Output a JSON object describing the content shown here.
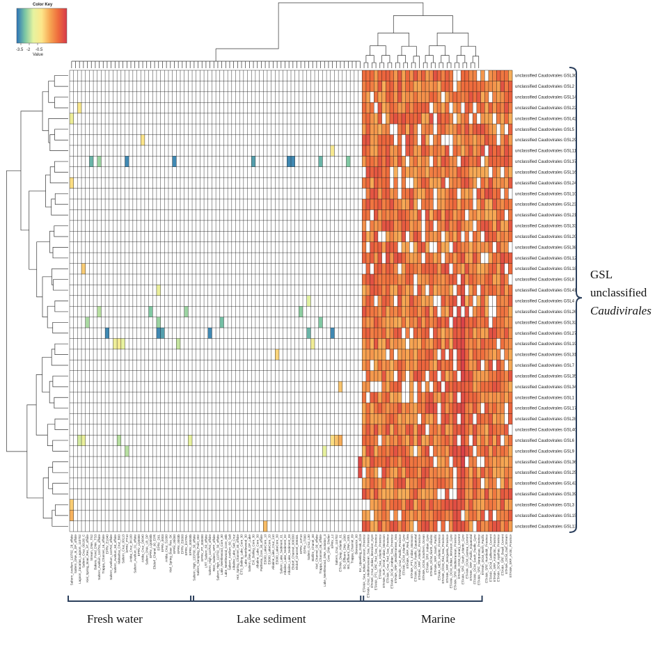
{
  "chart_data": {
    "type": "heatmap",
    "color_key": {
      "title": "Color Key",
      "xlabel": "Value",
      "tick_labels": [
        "-3.5",
        "-2",
        "-0.5"
      ],
      "range": [
        -4.2,
        0.4
      ],
      "colors": [
        "#2b73b8",
        "#7cc7a3",
        "#e6f3a0",
        "#fde68a",
        "#f6a552",
        "#ee6a3c",
        "#d63a4a"
      ]
    },
    "rows": [
      "unclassified Caudovirales GSL30",
      "unclassified Caudovirales GSL2",
      "unclassified Caudovirales GSL14",
      "unclassified Caudovirales GSL22",
      "unclassified Caudovirales GSL42",
      "unclassified Caudovirales GSL5",
      "unclassified Caudovirales GSL29",
      "unclassified Caudovirales GSL11",
      "unclassified Caudovirales GSL37",
      "unclassified Caudovirales GSL16",
      "unclassified Caudovirales GSL24",
      "unclassified Caudovirales GSL10",
      "unclassified Caudovirales GSL23",
      "unclassified Caudovirales GSL21",
      "unclassified Caudovirales GSL33",
      "unclassified Caudovirales GSL20",
      "unclassified Caudovirales GSL38",
      "unclassified Caudovirales GSL12",
      "unclassified Caudovirales GSL18",
      "unclassified Caudovirales GSL8",
      "unclassified Caudovirales GSL41",
      "unclassified Caudovirales GSL4",
      "unclassified Caudovirales GSL26",
      "unclassified Caudovirales GSL32",
      "unclassified Caudovirales GSL27",
      "unclassified Caudovirales GSL19",
      "unclassified Caudovirales GSL31",
      "unclassified Caudovirales GSL7",
      "unclassified Caudovirales GSL35",
      "unclassified Caudovirales GSL34",
      "unclassified Caudovirales GSL1",
      "unclassified Caudovirales GSL17",
      "unclassified Caudovirales GSL28",
      "unclassified Caudovirales GSL40",
      "unclassified Caudovirales GSL6",
      "unclassified Caudovirales GSL9",
      "unclassified Caudovirales GSL36",
      "unclassified Caudovirales GSL25",
      "unclassified Caudovirales GSL43",
      "unclassified Caudovirales GSL39",
      "unclassified Caudovirales GSL3",
      "unclassified Caudovirales GSL15",
      "unclassified Caudovirales GSL13"
    ],
    "columns": [
      "Saltern_Avellum_110702_28_offsite",
      "Saltern_DNA_B_DP_offsite",
      "Lagoon_Zacarias_Lagoon_110702",
      "Saltern_Cruz_00100_C",
      "Kiel_Spring_Boar_Res_97_offsite",
      "Stream_DNA_TS2",
      "Bakers_Pond_DNA_TS3",
      "Saltern_Avellum_110731_offsite",
      "Trappa_Channel_16_offsite",
      "EPRV_E1040",
      "Saltern_Avellum_110702_offsite",
      "Saltern_Avellum_60_offsite",
      "Makaelsa_Cruz_B00",
      "Saltern_Cruz_00113",
      "EPRV_PT10",
      "Aridia_Cruz_3K100",
      "Saltern_Avellum_01_offsite",
      "EPRV_LQ0000",
      "Aridia_Cruz_D0040",
      "Saltern_DNA_LB_DP",
      "EPRV_LQ0000b",
      "Eltdorf_Chanel_00_EPR",
      "EPRV_D01",
      "EPRV_0003",
      "Aridia_Cruz_S1000",
      "Kiel_Spring_Boar_Res_5K",
      "EPRV_00000",
      "EPRV_0003b",
      "EPRV_E0000",
      "EPRV_EXTRA",
      "EPRV_00000b",
      "Saltern_High_133700_30_offsite",
      "Saltern_Sampling_Point_002",
      "EPRV_PT_000000",
      "LRT_Saltern_60_offsite",
      "Saltern_High_110702_offsite",
      "RED_Saltern_HPF_offsite",
      "Saltern_High_110702_30_offsite",
      "Lake_Neettlewood_Core_30",
      "Lake_Neettlewood_Core_30b",
      "Saltern_Avellum_60_Salt",
      "Alkaline_Lake_Salt_Cruz",
      "Hot_Spring_Channel_30_offsite",
      "ETS_Boiling_Lake_Core_30",
      "Lake_Neettlewood_30",
      "Saltern_DNA_B_DP_Lake",
      "EXI_Boiling_Core_30",
      "Alkaline_Lake_Core_30",
      "Paltheria_Core_30_offsite",
      "E3000_LakeCore_10",
      "E3000_LakeCore_20",
      "Alkaline_Lake_Cruz_110",
      "E3000_LakeCore_30",
      "Saltern_Lake_Sediment_01",
      "Alkaline_Lake_Sediment_02",
      "Alkaline_Lake_Sediment_03",
      "Eltdorf_Channel_000330",
      "Eltdorf_Channel_000331",
      "EPRV_11P10",
      "EPRV_LT000",
      "Saltern_Cruz_L30",
      "Biofilm_Chanel_30",
      "Kiel_Channel_00_offsite",
      "Trappa_Channel_06_offsite",
      "Lake_Neettlewood_DNA_Isolation_3",
      "Core_DNA_Shelter",
      "EPRV_L2",
      "Saltern_Cruz_110702",
      "ETANA_Deep_Atlantic_01",
      "BG_Effluent_DNA_1000",
      "BG_Effluent_DNA_1001",
      "Trappa_Channel_09",
      "Bioreactor_00",
      "EA_Upwelling_Grab_2019",
      "ETAMA_Sea_Indian_Monsoon_Province",
      "ETAMA_Cruz_Mediterranean_Sea_Province",
      "ETAMA_Cruz_Indian_Monsoon_Gyre",
      "ETAMA_PT1_SRF_Red_Sea_Province",
      "ETAMA_Sea_Atlantic_Province",
      "ETAMA_SUF_DCM_Indian_Monsoon",
      "ETAMA_Cruz_Red_Sea_Province",
      "ETAMA_DCM_Arabian_Sea_Province",
      "ETAMA_SRF_Mediterranean_Sea",
      "ETAMA_Cruz_Pacific_Province",
      "ETAMA_DCM_Atlantic_Gyre",
      "ETAMA_SRF_Red_Sea",
      "ETAMA_PT1_Indian_Monsoon",
      "ETAMA_DCM_Pacific_Equatorial",
      "ETAMA_SRF_Atlantic_Province",
      "ETAMA_DCM_Southern_Ocean",
      "ETAMA_SRF_Indian_Gyre",
      "ETAMA_DCM_North_Atlantic",
      "ETAMA_SRF_South_Pacific",
      "ETAMA_MES_Atlantic_Province",
      "ETAMA_DCM_Red_Sea_Province",
      "ETAMA_SRF_Benguela_Province",
      "ETAMA_DCM_Indian_Monsoon_Gyre",
      "ETAMA_SRF_Mediterranean_Province",
      "ETAMA_DCM_Canary_Current",
      "ETAMA_SRF_South_Atlantic_Gyre",
      "ETAMA_DCM_Guinea_Current",
      "ETAMA_SRF_Pacific_Equatorial",
      "ETAMA_DCM_South_Pacific_Gyre",
      "ETAMA_SRF_Marquesas_Province",
      "ETAMA_DCM_North_Pacific",
      "ETAMA_SRF_Humboldt_Province",
      "ETAMA_DCM_California_Current",
      "ETAMA_SRF_Antarctic_Province",
      "ETAMA_DCM_Agulhas_Province",
      "ETAMA_SRF_Brazil_Current",
      "ETAMA_DCM_Gulf_Stream",
      "ETAMA_SRF_Arctic_Province"
    ],
    "groups": [
      {
        "name": "Fresh water",
        "from": 0,
        "to": 30
      },
      {
        "name": "Lake sediment",
        "from": 31,
        "to": 73
      },
      {
        "name": "Marine",
        "from": 74,
        "to": 103
      }
    ],
    "annotation": [
      "GSL",
      "unclassified",
      "Caudivirales"
    ],
    "cells": {
      "marine_background": -0.6,
      "marine_strong_columns": [
        {
          "col": 97,
          "value": 0.0
        },
        {
          "col": 98,
          "value": -0.1
        },
        {
          "col": 99,
          "value": 0.1
        }
      ],
      "highlights": [
        {
          "row": 8,
          "col": 5,
          "value": -3.6
        },
        {
          "row": 8,
          "col": 7,
          "value": -3.2
        },
        {
          "row": 8,
          "col": 14,
          "value": -4.0
        },
        {
          "row": 8,
          "col": 26,
          "value": -4.0
        },
        {
          "row": 8,
          "col": 46,
          "value": -3.8
        },
        {
          "row": 8,
          "col": 55,
          "value": -4.0
        },
        {
          "row": 8,
          "col": 56,
          "value": -4.0
        },
        {
          "row": 8,
          "col": 63,
          "value": -3.6
        },
        {
          "row": 8,
          "col": 70,
          "value": -3.4
        },
        {
          "row": 22,
          "col": 7,
          "value": -3.0
        },
        {
          "row": 22,
          "col": 20,
          "value": -3.4
        },
        {
          "row": 22,
          "col": 29,
          "value": -3.2
        },
        {
          "row": 22,
          "col": 58,
          "value": -3.3
        },
        {
          "row": 23,
          "col": 4,
          "value": -3.1
        },
        {
          "row": 23,
          "col": 22,
          "value": -3.2
        },
        {
          "row": 23,
          "col": 38,
          "value": -3.5
        },
        {
          "row": 23,
          "col": 63,
          "value": -3.4
        },
        {
          "row": 24,
          "col": 9,
          "value": -4.0
        },
        {
          "row": 24,
          "col": 22,
          "value": -4.0
        },
        {
          "row": 24,
          "col": 23,
          "value": -3.8
        },
        {
          "row": 24,
          "col": 35,
          "value": -4.0
        },
        {
          "row": 24,
          "col": 60,
          "value": -3.6
        },
        {
          "row": 24,
          "col": 66,
          "value": -4.0
        },
        {
          "row": 25,
          "col": 11,
          "value": -2.4
        },
        {
          "row": 25,
          "col": 12,
          "value": -2.2
        },
        {
          "row": 25,
          "col": 13,
          "value": -2.6
        },
        {
          "row": 25,
          "col": 27,
          "value": -2.9
        },
        {
          "row": 25,
          "col": 61,
          "value": -2.3
        },
        {
          "row": 34,
          "col": 2,
          "value": -2.8
        },
        {
          "row": 34,
          "col": 3,
          "value": -2.5
        },
        {
          "row": 34,
          "col": 12,
          "value": -3.0
        },
        {
          "row": 34,
          "col": 30,
          "value": -2.6
        },
        {
          "row": 34,
          "col": 66,
          "value": -1.8
        },
        {
          "row": 34,
          "col": 67,
          "value": -1.5
        },
        {
          "row": 34,
          "col": 68,
          "value": -1.2
        },
        {
          "row": 35,
          "col": 14,
          "value": -3.0
        },
        {
          "row": 35,
          "col": 64,
          "value": -2.6
        },
        {
          "row": 36,
          "col": 73,
          "value": 0.2
        },
        {
          "row": 37,
          "col": 73,
          "value": 0.1
        },
        {
          "row": 3,
          "col": 2,
          "value": -2.0
        },
        {
          "row": 4,
          "col": 0,
          "value": -2.4
        },
        {
          "row": 6,
          "col": 18,
          "value": -1.9
        },
        {
          "row": 7,
          "col": 66,
          "value": -2.1
        },
        {
          "row": 10,
          "col": 0,
          "value": -1.8
        },
        {
          "row": 18,
          "col": 3,
          "value": -1.6
        },
        {
          "row": 20,
          "col": 22,
          "value": -2.5
        },
        {
          "row": 21,
          "col": 60,
          "value": -2.7
        },
        {
          "row": 26,
          "col": 52,
          "value": -1.7
        },
        {
          "row": 29,
          "col": 68,
          "value": -1.5
        },
        {
          "row": 40,
          "col": 0,
          "value": -1.6
        },
        {
          "row": 41,
          "col": 0,
          "value": -1.3
        },
        {
          "row": 42,
          "col": 49,
          "value": -1.4
        }
      ]
    }
  }
}
